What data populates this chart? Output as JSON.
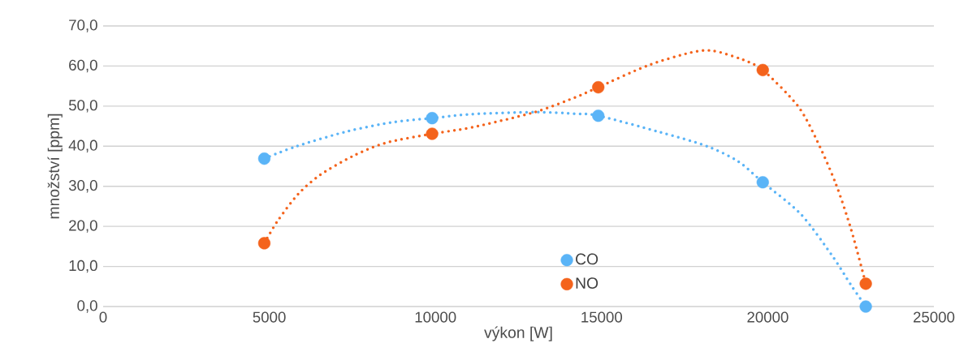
{
  "chart_data": {
    "type": "scatter",
    "xlabel": "výkon [W]",
    "ylabel": "množství [ppm]",
    "xlim": [
      0,
      25000
    ],
    "xticks": [
      0,
      5000,
      10000,
      15000,
      20000,
      25000
    ],
    "ylim": [
      0,
      70
    ],
    "yticks": [
      {
        "value": 0,
        "label": "0,0"
      },
      {
        "value": 10,
        "label": "10,0"
      },
      {
        "value": 20,
        "label": "20,0"
      },
      {
        "value": 30,
        "label": "30,0"
      },
      {
        "value": 40,
        "label": "40,0"
      },
      {
        "value": 50,
        "label": "50,0"
      },
      {
        "value": 60,
        "label": "60,0"
      },
      {
        "value": 70,
        "label": "70,0"
      }
    ],
    "grid": "y",
    "legend": "bottom",
    "series": [
      {
        "type": "line",
        "color": "#5ab4f7",
        "line_style": "dotted",
        "marker": "none",
        "x": [
          4850,
          5790,
          7345,
          8733,
          9900,
          11100,
          12990,
          14210,
          14900,
          16760,
          18170,
          19110,
          19850,
          21000,
          21945,
          22510,
          22950
        ],
        "values": [
          36.9,
          39.9,
          43.7,
          46.0,
          47.0,
          48.0,
          48.5,
          48.1,
          47.6,
          43.5,
          40.0,
          36.2,
          31.0,
          23.0,
          12.6,
          5.3,
          0.0
        ]
      },
      {
        "type": "line",
        "color": "#f4631c",
        "line_style": "dotted",
        "marker": "none",
        "x": [
          4850,
          5262,
          5875,
          6527,
          7508,
          8488,
          9900,
          11100,
          12990,
          14210,
          14900,
          16380,
          17700,
          18360,
          19210,
          19850,
          20900,
          21470,
          22040,
          22510,
          22950
        ],
        "values": [
          15.8,
          21.5,
          28.1,
          32.8,
          37.5,
          40.8,
          43.1,
          44.7,
          48.5,
          52.2,
          54.7,
          60.1,
          63.4,
          63.8,
          61.7,
          59.0,
          50.1,
          41.6,
          30.8,
          19.2,
          5.7
        ]
      },
      {
        "name": "CO",
        "marker": "circle",
        "color": "#5ab4f7",
        "x": [
          4850,
          9900,
          14900,
          19850,
          22950
        ],
        "values": [
          36.9,
          47.0,
          47.6,
          31.0,
          0.0
        ]
      },
      {
        "name": "NO",
        "marker": "circle",
        "color": "#f4631c",
        "x": [
          4850,
          9900,
          14900,
          19850,
          22950
        ],
        "values": [
          15.8,
          43.1,
          54.7,
          59.0,
          5.7
        ]
      }
    ]
  }
}
